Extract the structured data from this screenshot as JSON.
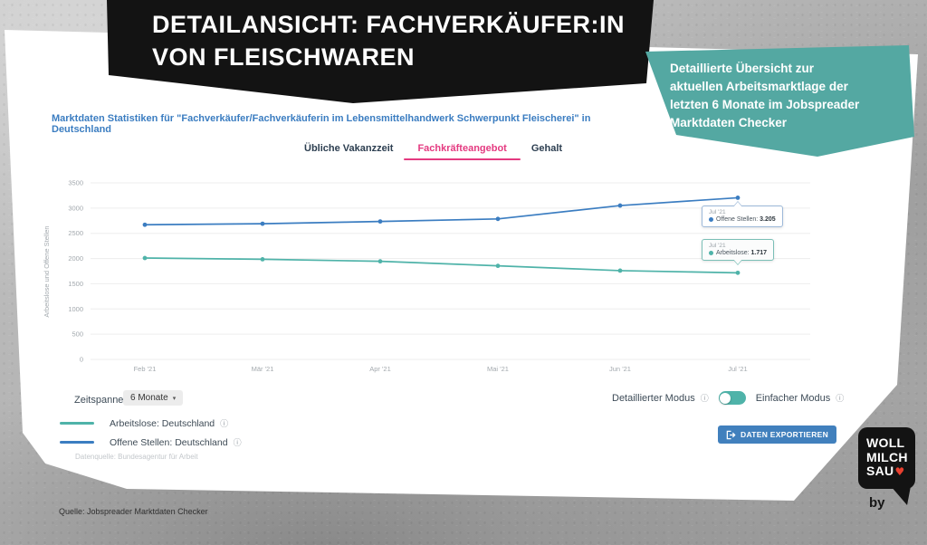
{
  "header": {
    "title": "DETAILANSICHT: FACHVERKÄUFER:IN\nVON FLEISCHWAREN"
  },
  "callout": {
    "text": "Detaillierte Übersicht zur\naktuellen Arbeitsmarktlage der\nletzten 6 Monate im Jobspreader\nMarktdaten Checker"
  },
  "tabs": [
    {
      "label": "Übliche Vakanzzeit",
      "active": false
    },
    {
      "label": "Fachkräfteangebot",
      "active": true
    },
    {
      "label": "Gehalt",
      "active": false
    }
  ],
  "chart_data": {
    "type": "line",
    "title": "Marktdaten Statistiken für \"Fachverkäufer/Fachverkäuferin im Lebensmittelhandwerk Schwerpunkt Fleischerei\" in Deutschland",
    "ylabel": "Arbeitslose und Offene Stellen",
    "categories": [
      "Feb '21",
      "Mär '21",
      "Apr '21",
      "Mai '21",
      "Jun '21",
      "Jul '21"
    ],
    "series": [
      {
        "name": "Arbeitslose: Deutschland",
        "color": "#4fb3a9",
        "values": [
          2010,
          1985,
          1945,
          1855,
          1760,
          1717
        ]
      },
      {
        "name": "Offene Stellen: Deutschland",
        "color": "#3b7dc1",
        "values": [
          2670,
          2690,
          2735,
          2785,
          3050,
          3205
        ]
      }
    ],
    "ylim": [
      0,
      3500
    ],
    "y_ticks": [
      0,
      500,
      1000,
      1500,
      2000,
      2500,
      3000,
      3500
    ],
    "grid": true,
    "legend_position": "bottom-left",
    "tooltips": [
      {
        "month": "Jul '21",
        "label": "Offene Stellen:",
        "value": "3.205"
      },
      {
        "month": "Jul '21",
        "label": "Arbeitslose:",
        "value": "1.717"
      }
    ]
  },
  "controls": {
    "zeitspanne_label": "Zeitspanne",
    "zeitspanne_value": "6 Monate",
    "detailed_label": "Detaillierter Modus",
    "simple_label": "Einfacher Modus",
    "export_label": "DATEN EXPORTIEREN"
  },
  "footnotes": {
    "datenquelle": "Datenquelle: Bundesagentur für Arbeit",
    "quelle": "Quelle: Jobspreader Marktdaten Checker"
  },
  "logo": {
    "line1": "WOLL",
    "line2": "MILCH",
    "line3": "SAU",
    "by": "by",
    "heart": "♥",
    "heart_color": "#e8402f"
  },
  "icons": {
    "info": "ⓘ",
    "caret": "▾"
  },
  "colors": {
    "banner_bg": "#131313",
    "callout_bg": "#54a8a2",
    "title_blue": "#3b7dc1",
    "accent_pink": "#e43a80",
    "export_bg": "#4180bd"
  }
}
